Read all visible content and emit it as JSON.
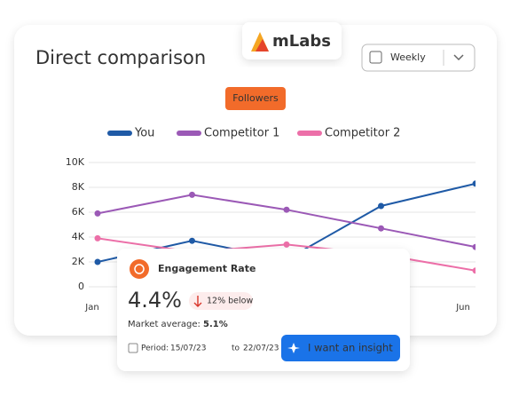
{
  "ui": {
    "title": "Direct comparison",
    "logo": "mLabs",
    "period_select": "Weekly",
    "metric": "Followers",
    "card": {
      "title": "Engagement Rate",
      "value": "4.4%",
      "delta": "12% below",
      "market_label": "Market average:",
      "market_value": "5.1%",
      "period_label": "Period:",
      "period_start": "15/07/23",
      "period_to": "to",
      "period_end": "22/07/23",
      "button": "I want an insight"
    }
  },
  "chart_data": {
    "type": "line",
    "categories": [
      "Jan",
      null,
      null,
      null,
      "Jun"
    ],
    "series": [
      {
        "name": "You",
        "color": "#1f5aa6",
        "values": [
          2000,
          3700,
          2200,
          6500,
          8300
        ]
      },
      {
        "name": "Competitor 1",
        "color": "#9b59b6",
        "values": [
          5900,
          7400,
          6200,
          4700,
          3200
        ]
      },
      {
        "name": "Competitor 2",
        "color": "#ec6fa8",
        "values": [
          3900,
          2800,
          3400,
          2600,
          1300
        ]
      }
    ],
    "ylim": [
      0,
      10000
    ],
    "yticks": [
      0,
      {
        "value": 2000,
        "label": "2K"
      },
      {
        "value": 4000,
        "label": "4K"
      },
      {
        "value": 6000,
        "label": "6K"
      },
      {
        "value": 8000,
        "label": "8K"
      },
      {
        "value": 10000,
        "label": "10K"
      }
    ],
    "grid": true
  }
}
